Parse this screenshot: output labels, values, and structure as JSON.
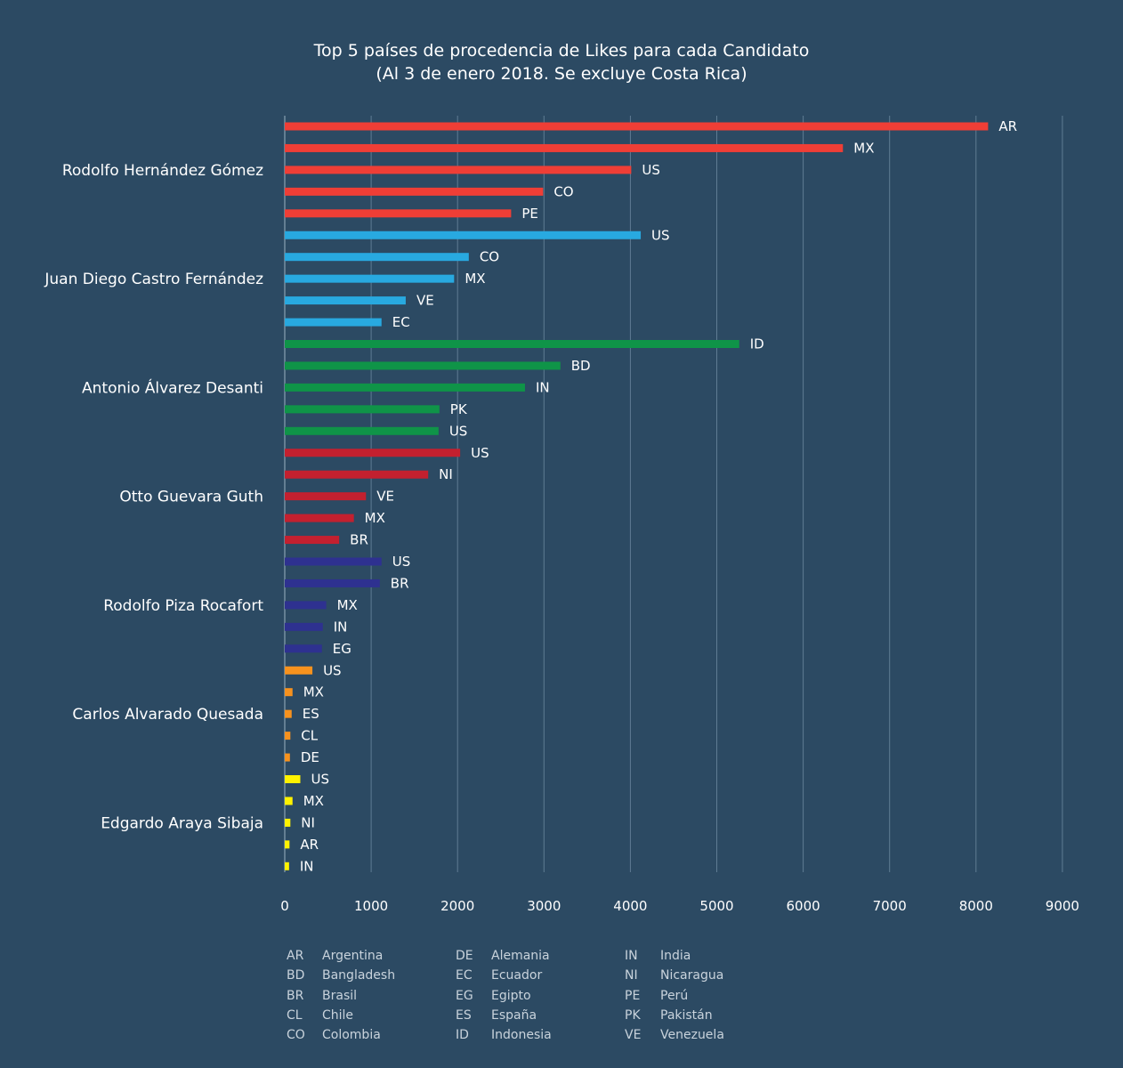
{
  "chart_data": {
    "type": "bar",
    "orientation": "horizontal",
    "title": "Top 5 países de procedencia de Likes para cada Candidato",
    "subtitle": "(Al 3 de enero 2018. Se excluye Costa Rica)",
    "xlabel": "",
    "ylabel": "",
    "xlim": [
      0,
      9000
    ],
    "x_ticks": [
      "0",
      "1000",
      "2000",
      "3000",
      "4000",
      "5000",
      "6000",
      "7000",
      "8000",
      "9000"
    ],
    "grid": true,
    "series": [
      {
        "name": "Rodolfo Hernández Gómez",
        "color": "#ef3e36",
        "bars": [
          {
            "code": "AR",
            "value": 8140
          },
          {
            "code": "MX",
            "value": 6460
          },
          {
            "code": "US",
            "value": 4010
          },
          {
            "code": "CO",
            "value": 2990
          },
          {
            "code": "PE",
            "value": 2620
          }
        ]
      },
      {
        "name": "Juan Diego Castro Fernández",
        "color": "#28a9e0",
        "bars": [
          {
            "code": "US",
            "value": 4120
          },
          {
            "code": "CO",
            "value": 2130
          },
          {
            "code": "MX",
            "value": 1960
          },
          {
            "code": "VE",
            "value": 1400
          },
          {
            "code": "EC",
            "value": 1120
          }
        ]
      },
      {
        "name": "Antonio Álvarez Desanti",
        "color": "#0f9448",
        "bars": [
          {
            "code": "ID",
            "value": 5260
          },
          {
            "code": "BD",
            "value": 3190
          },
          {
            "code": "IN",
            "value": 2780
          },
          {
            "code": "PK",
            "value": 1790
          },
          {
            "code": "US",
            "value": 1780
          }
        ]
      },
      {
        "name": "Otto Guevara Guth",
        "color": "#c3202f",
        "bars": [
          {
            "code": "US",
            "value": 2030
          },
          {
            "code": "NI",
            "value": 1660
          },
          {
            "code": "VE",
            "value": 940
          },
          {
            "code": "MX",
            "value": 800
          },
          {
            "code": "BR",
            "value": 630
          }
        ]
      },
      {
        "name": "Rodolfo Piza Rocafort",
        "color": "#2e3190",
        "bars": [
          {
            "code": "US",
            "value": 1120
          },
          {
            "code": "BR",
            "value": 1100
          },
          {
            "code": "MX",
            "value": 480
          },
          {
            "code": "IN",
            "value": 440
          },
          {
            "code": "EG",
            "value": 430
          }
        ]
      },
      {
        "name": "Carlos Alvarado Quesada",
        "color": "#f7921e",
        "bars": [
          {
            "code": "US",
            "value": 320
          },
          {
            "code": "MX",
            "value": 90
          },
          {
            "code": "ES",
            "value": 80
          },
          {
            "code": "CL",
            "value": 65
          },
          {
            "code": "DE",
            "value": 60
          }
        ]
      },
      {
        "name": "Edgardo Araya Sibaja",
        "color": "#fff200",
        "bars": [
          {
            "code": "US",
            "value": 180
          },
          {
            "code": "MX",
            "value": 90
          },
          {
            "code": "NI",
            "value": 65
          },
          {
            "code": "AR",
            "value": 55
          },
          {
            "code": "IN",
            "value": 50
          }
        ]
      }
    ],
    "legend": [
      [
        {
          "code": "AR",
          "country": "Argentina"
        },
        {
          "code": "BD",
          "country": "Bangladesh"
        },
        {
          "code": "BR",
          "country": "Brasil"
        },
        {
          "code": "CL",
          "country": "Chile"
        },
        {
          "code": "CO",
          "country": "Colombia"
        }
      ],
      [
        {
          "code": "DE",
          "country": "Alemania"
        },
        {
          "code": "EC",
          "country": "Ecuador"
        },
        {
          "code": "EG",
          "country": "Egipto"
        },
        {
          "code": "ES",
          "country": "España"
        },
        {
          "code": "ID",
          "country": "Indonesia"
        }
      ],
      [
        {
          "code": "IN",
          "country": "India"
        },
        {
          "code": "NI",
          "country": "Nicaragua"
        },
        {
          "code": "PE",
          "country": "Perú"
        },
        {
          "code": "PK",
          "country": "Pakistán"
        },
        {
          "code": "VE",
          "country": "Venezuela"
        }
      ]
    ]
  }
}
